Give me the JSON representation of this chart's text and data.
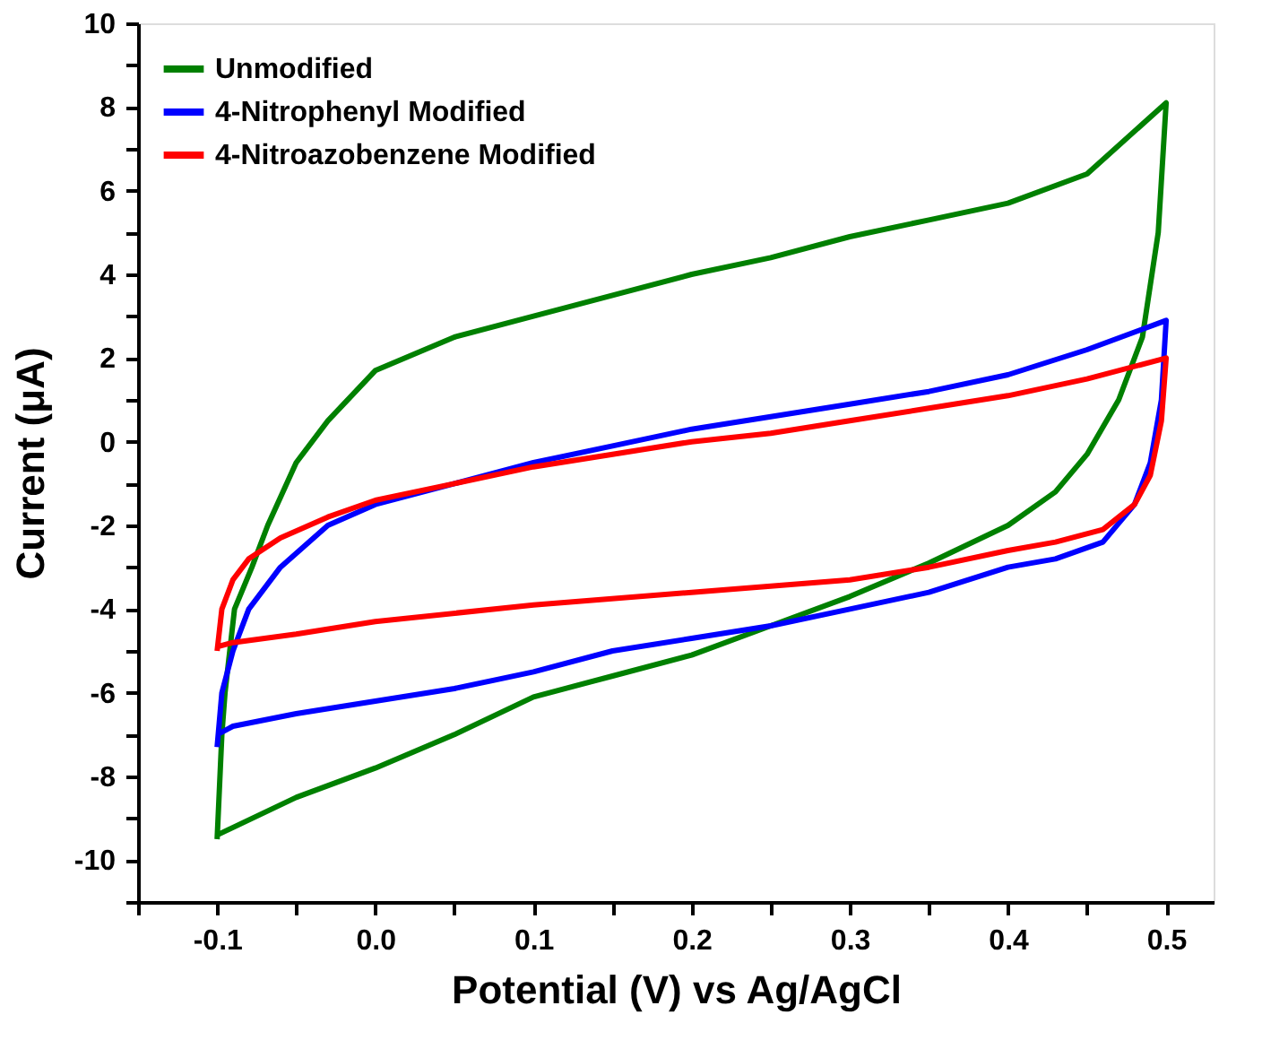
{
  "chart_data": {
    "type": "line",
    "xlabel": "Potential (V) vs Ag/AgCl",
    "ylabel": "Current (μA)",
    "xlim": [
      -0.15,
      0.53
    ],
    "ylim": [
      -11,
      10
    ],
    "xticks": [
      {
        "value": -0.15,
        "label": null
      },
      {
        "value": -0.1,
        "label": "-0.1"
      },
      {
        "value": -0.05,
        "label": null
      },
      {
        "value": 0,
        "label": "0.0"
      },
      {
        "value": 0.05,
        "label": null
      },
      {
        "value": 0.1,
        "label": "0.1"
      },
      {
        "value": 0.15,
        "label": null
      },
      {
        "value": 0.2,
        "label": "0.2"
      },
      {
        "value": 0.25,
        "label": null
      },
      {
        "value": 0.3,
        "label": "0.3"
      },
      {
        "value": 0.35,
        "label": null
      },
      {
        "value": 0.4,
        "label": "0.4"
      },
      {
        "value": 0.45,
        "label": null
      },
      {
        "value": 0.5,
        "label": "0.5"
      }
    ],
    "yticks": [
      {
        "value": -11,
        "label": null
      },
      -10,
      {
        "value": -9,
        "label": null
      },
      -8,
      {
        "value": -7,
        "label": null
      },
      -6,
      {
        "value": -5,
        "label": null
      },
      -4,
      {
        "value": -3,
        "label": null
      },
      -2,
      {
        "value": -1,
        "label": null
      },
      0,
      {
        "value": 1,
        "label": null
      },
      2,
      {
        "value": 3,
        "label": null
      },
      4,
      {
        "value": 5,
        "label": null
      },
      6,
      {
        "value": 7,
        "label": null
      },
      8,
      {
        "value": 9,
        "label": null
      },
      10
    ],
    "grid": false,
    "legend": "top left",
    "marker": "none",
    "line_style": "solid",
    "series": [
      {
        "name": "Unmodified",
        "color": "#008000",
        "x": [
          -0.1,
          -0.097,
          -0.095,
          -0.089,
          -0.078,
          -0.068,
          -0.05,
          -0.03,
          0,
          0.05,
          0.1,
          0.15,
          0.2,
          0.25,
          0.3,
          0.35,
          0.4,
          0.45,
          0.5,
          0.495,
          0.485,
          0.47,
          0.45,
          0.43,
          0.4,
          0.35,
          0.3,
          0.25,
          0.2,
          0.15,
          0.1,
          0.05,
          0,
          -0.05,
          -0.1
        ],
        "values": [
          -9.5,
          -7,
          -6,
          -4,
          -3,
          -2,
          -0.5,
          0.5,
          1.7,
          2.5,
          3.0,
          3.5,
          4.0,
          4.4,
          4.9,
          5.3,
          5.7,
          6.4,
          8.1,
          5,
          2.5,
          1,
          -0.3,
          -1.2,
          -2.0,
          -2.9,
          -3.7,
          -4.4,
          -5.1,
          -5.6,
          -6.1,
          -7.0,
          -7.8,
          -8.5,
          -9.4
        ]
      },
      {
        "name": "4-Nitrophenyl Modified",
        "color": "#0000ff",
        "x": [
          -0.1,
          -0.097,
          -0.09,
          -0.08,
          -0.06,
          -0.03,
          0,
          0.05,
          0.1,
          0.15,
          0.2,
          0.25,
          0.3,
          0.35,
          0.4,
          0.45,
          0.5,
          0.497,
          0.49,
          0.48,
          0.46,
          0.43,
          0.4,
          0.35,
          0.3,
          0.25,
          0.2,
          0.15,
          0.1,
          0.05,
          0,
          -0.05,
          -0.09,
          -0.1
        ],
        "values": [
          -7.3,
          -6,
          -5,
          -4,
          -3,
          -2,
          -1.5,
          -1,
          -0.5,
          -0.1,
          0.3,
          0.6,
          0.9,
          1.2,
          1.6,
          2.2,
          2.9,
          1,
          -0.5,
          -1.5,
          -2.4,
          -2.8,
          -3.0,
          -3.6,
          -4.0,
          -4.4,
          -4.7,
          -5.0,
          -5.5,
          -5.9,
          -6.2,
          -6.5,
          -6.8,
          -7.0
        ]
      },
      {
        "name": "4-Nitroazobenzene Modified",
        "color": "#ff0000",
        "x": [
          -0.1,
          -0.097,
          -0.09,
          -0.08,
          -0.06,
          -0.03,
          0,
          0.05,
          0.1,
          0.15,
          0.2,
          0.25,
          0.3,
          0.35,
          0.4,
          0.45,
          0.5,
          0.497,
          0.49,
          0.48,
          0.46,
          0.43,
          0.4,
          0.35,
          0.3,
          0.2,
          0.1,
          0,
          -0.05,
          -0.09,
          -0.1
        ],
        "values": [
          -5.0,
          -4,
          -3.3,
          -2.8,
          -2.3,
          -1.8,
          -1.4,
          -1,
          -0.6,
          -0.3,
          0,
          0.2,
          0.5,
          0.8,
          1.1,
          1.5,
          2.0,
          0.5,
          -0.8,
          -1.5,
          -2.1,
          -2.4,
          -2.6,
          -3.0,
          -3.3,
          -3.6,
          -3.9,
          -4.3,
          -4.6,
          -4.8,
          -4.9
        ]
      }
    ]
  }
}
